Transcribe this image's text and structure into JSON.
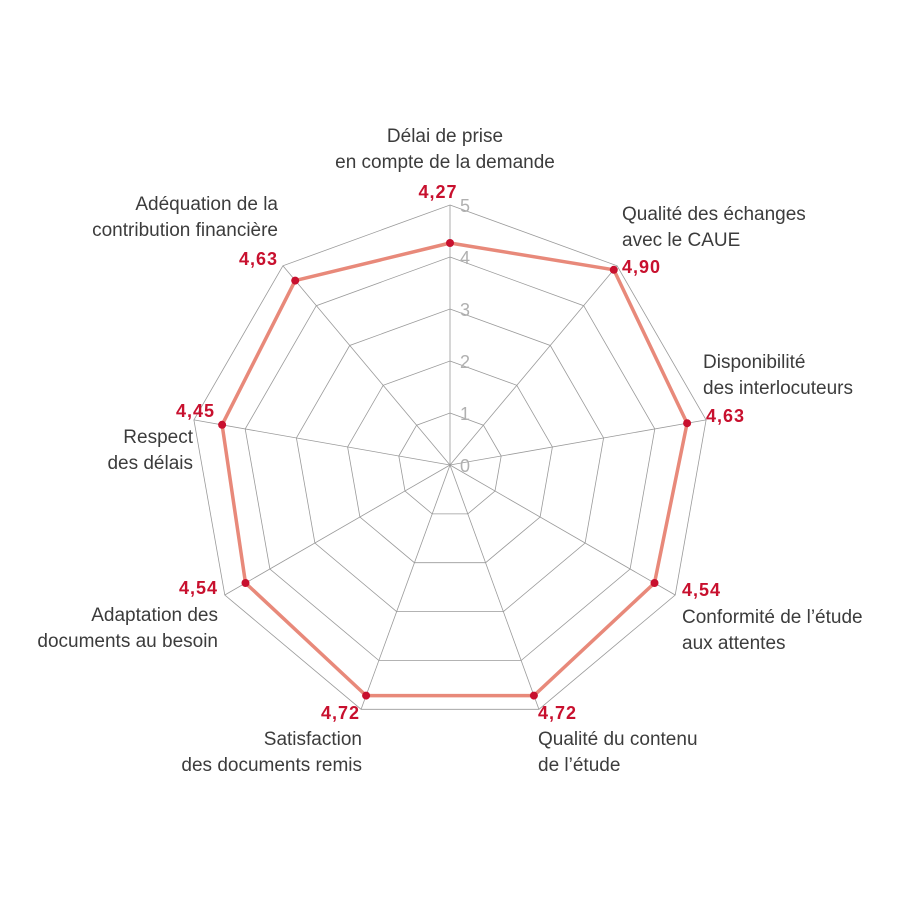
{
  "chart_data": {
    "type": "radar",
    "scale": {
      "min": 0,
      "max": 5,
      "ticks": [
        "0",
        "1",
        "2",
        "3",
        "4",
        "5"
      ]
    },
    "axes": [
      {
        "label": [
          "Délai de prise",
          "en compte de la demande"
        ],
        "value": 4.27,
        "value_label": "4,27"
      },
      {
        "label": [
          "Qualité des échanges",
          "avec le CAUE"
        ],
        "value": 4.9,
        "value_label": "4,90"
      },
      {
        "label": [
          "Disponibilité",
          "des interlocuteurs"
        ],
        "value": 4.63,
        "value_label": "4,63"
      },
      {
        "label": [
          "Conformité de l’étude",
          "aux attentes"
        ],
        "value": 4.54,
        "value_label": "4,54"
      },
      {
        "label": [
          "Qualité du contenu",
          "de l’étude"
        ],
        "value": 4.72,
        "value_label": "4,72"
      },
      {
        "label": [
          "Satisfaction",
          "des documents remis"
        ],
        "value": 4.72,
        "value_label": "4,72"
      },
      {
        "label": [
          "Adaptation des",
          "documents au besoin"
        ],
        "value": 4.54,
        "value_label": "4,54"
      },
      {
        "label": [
          "Respect",
          "des délais"
        ],
        "value": 4.45,
        "value_label": "4,45"
      },
      {
        "label": [
          "Adéquation de la",
          "contribution financière"
        ],
        "value": 4.63,
        "value_label": "4,63"
      }
    ],
    "grid": true,
    "colors": {
      "series_line": "#e8897a",
      "point": "#c8102e",
      "value_text": "#c8102e",
      "grid": "#9a9a9a",
      "tick_text": "#b0b0b0",
      "label_text": "#3c3c3c"
    }
  }
}
